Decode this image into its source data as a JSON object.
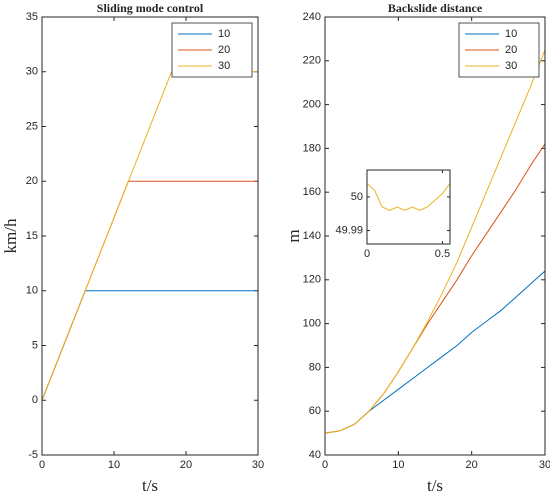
{
  "chart_data": [
    {
      "type": "line",
      "title": "Sliding mode control",
      "xlabel": "t/s",
      "ylabel": "km/h",
      "x": [
        0,
        6,
        12,
        18,
        30
      ],
      "series": [
        {
          "name": "10",
          "color": "#0072bd",
          "values": [
            0,
            10,
            10,
            10,
            10
          ]
        },
        {
          "name": "20",
          "color": "#d95319",
          "values": [
            0,
            10,
            20,
            20,
            20
          ]
        },
        {
          "name": "30",
          "color": "#edb120",
          "values": [
            0,
            10,
            20,
            30,
            30
          ]
        }
      ],
      "xlim": [
        0,
        30
      ],
      "xticks": [
        0,
        10,
        20,
        30
      ],
      "ylim": [
        -5,
        35
      ],
      "yticks": [
        -5,
        0,
        5,
        10,
        15,
        20,
        25,
        30,
        35
      ],
      "legend": "upper right"
    },
    {
      "type": "line",
      "title": "Backslide distance",
      "xlabel": "t/s",
      "ylabel": "m",
      "x": [
        0,
        2,
        4,
        6,
        8,
        10,
        12,
        14,
        16,
        18,
        20,
        22,
        24,
        26,
        28,
        30
      ],
      "series": [
        {
          "name": "10",
          "color": "#0072bd",
          "values": [
            50,
            51,
            54,
            60,
            65,
            70,
            75,
            80,
            85,
            90,
            96,
            101,
            106,
            112,
            118,
            124
          ]
        },
        {
          "name": "20",
          "color": "#d95319",
          "values": [
            50,
            51,
            54,
            60,
            68,
            78,
            89,
            100,
            110,
            120,
            131,
            141,
            151,
            161,
            172,
            182
          ]
        },
        {
          "name": "30",
          "color": "#edb120",
          "values": [
            50,
            51,
            54,
            60,
            68,
            78,
            89,
            101,
            114,
            128,
            144,
            160,
            176,
            192,
            208,
            225
          ]
        }
      ],
      "xlim": [
        0,
        30
      ],
      "xticks": [
        0,
        10,
        20,
        30
      ],
      "ylim": [
        40,
        240
      ],
      "yticks": [
        40,
        60,
        80,
        100,
        120,
        140,
        160,
        180,
        200,
        220,
        240
      ],
      "legend": "upper right"
    },
    {
      "type": "line",
      "x": [
        0,
        0.05,
        0.1,
        0.15,
        0.2,
        0.25,
        0.3,
        0.35,
        0.4,
        0.45,
        0.5,
        0.55
      ],
      "series": [
        {
          "color": "#edb120",
          "values": [
            50.004,
            50.002,
            49.997,
            49.996,
            49.997,
            49.996,
            49.997,
            49.996,
            49.997,
            49.999,
            50.001,
            50.004
          ]
        }
      ],
      "xlim": [
        0,
        0.55
      ],
      "xticks": [
        0,
        0.5
      ],
      "ylim": [
        49.986,
        50.008
      ],
      "yticks": [
        49.99,
        50
      ]
    }
  ]
}
